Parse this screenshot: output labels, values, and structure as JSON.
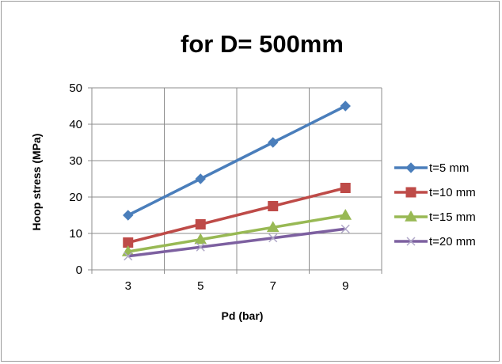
{
  "chart_data": {
    "type": "line",
    "title": "for D= 500mm",
    "xlabel": "Pd (bar)",
    "ylabel": "Hoop stress (MPa)",
    "categories": [
      "3",
      "5",
      "7",
      "9"
    ],
    "ylim": [
      0,
      50
    ],
    "yticks": [
      "0",
      "10",
      "20",
      "30",
      "40",
      "50"
    ],
    "grid": true,
    "legend_position": "right",
    "series": [
      {
        "name": "t=5 mm",
        "values": [
          15,
          25,
          35,
          45
        ],
        "color": "#4a7ebb",
        "marker": "diamond"
      },
      {
        "name": "t=10 mm",
        "values": [
          7.5,
          12.5,
          17.5,
          22.5
        ],
        "color": "#be4b48",
        "marker": "square"
      },
      {
        "name": "t=15 mm",
        "values": [
          5,
          8.33,
          11.67,
          15
        ],
        "color": "#98b954",
        "marker": "triangle"
      },
      {
        "name": "t=20 mm",
        "values": [
          3.75,
          6.25,
          8.75,
          11.25
        ],
        "color": "#7d60a0",
        "marker": "x"
      }
    ]
  }
}
